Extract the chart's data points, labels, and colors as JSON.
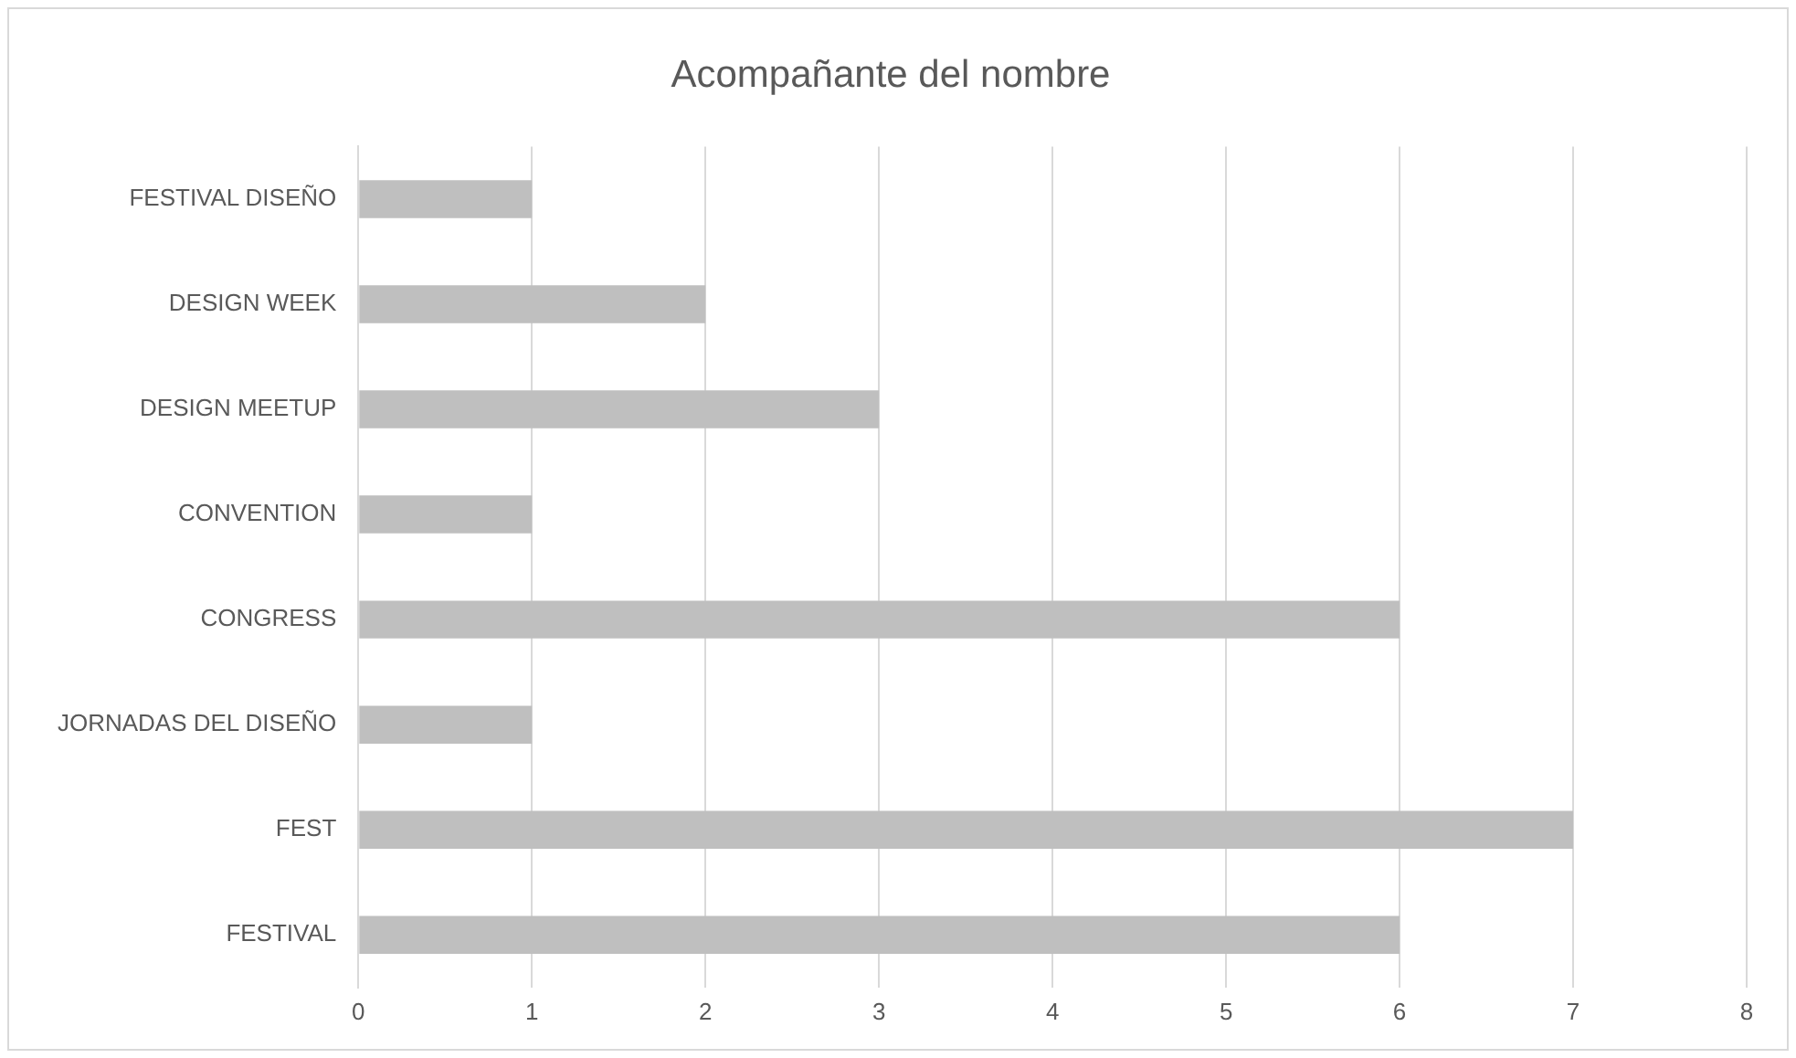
{
  "chart_data": {
    "type": "bar",
    "orientation": "horizontal",
    "title": "Acompañante del nombre",
    "categories": [
      "FESTIVAL DISEÑO",
      "DESIGN WEEK",
      "DESIGN MEETUP",
      "CONVENTION",
      "CONGRESS",
      "JORNADAS DEL DISEÑO",
      "FEST",
      "FESTIVAL"
    ],
    "values": [
      1,
      2,
      3,
      1,
      6,
      1,
      7,
      6
    ],
    "color": "#bfbfbf",
    "xlim": [
      0,
      8
    ],
    "xticks": [
      0,
      1,
      2,
      3,
      4,
      5,
      6,
      7,
      8
    ],
    "grid": "x",
    "legend": false
  }
}
